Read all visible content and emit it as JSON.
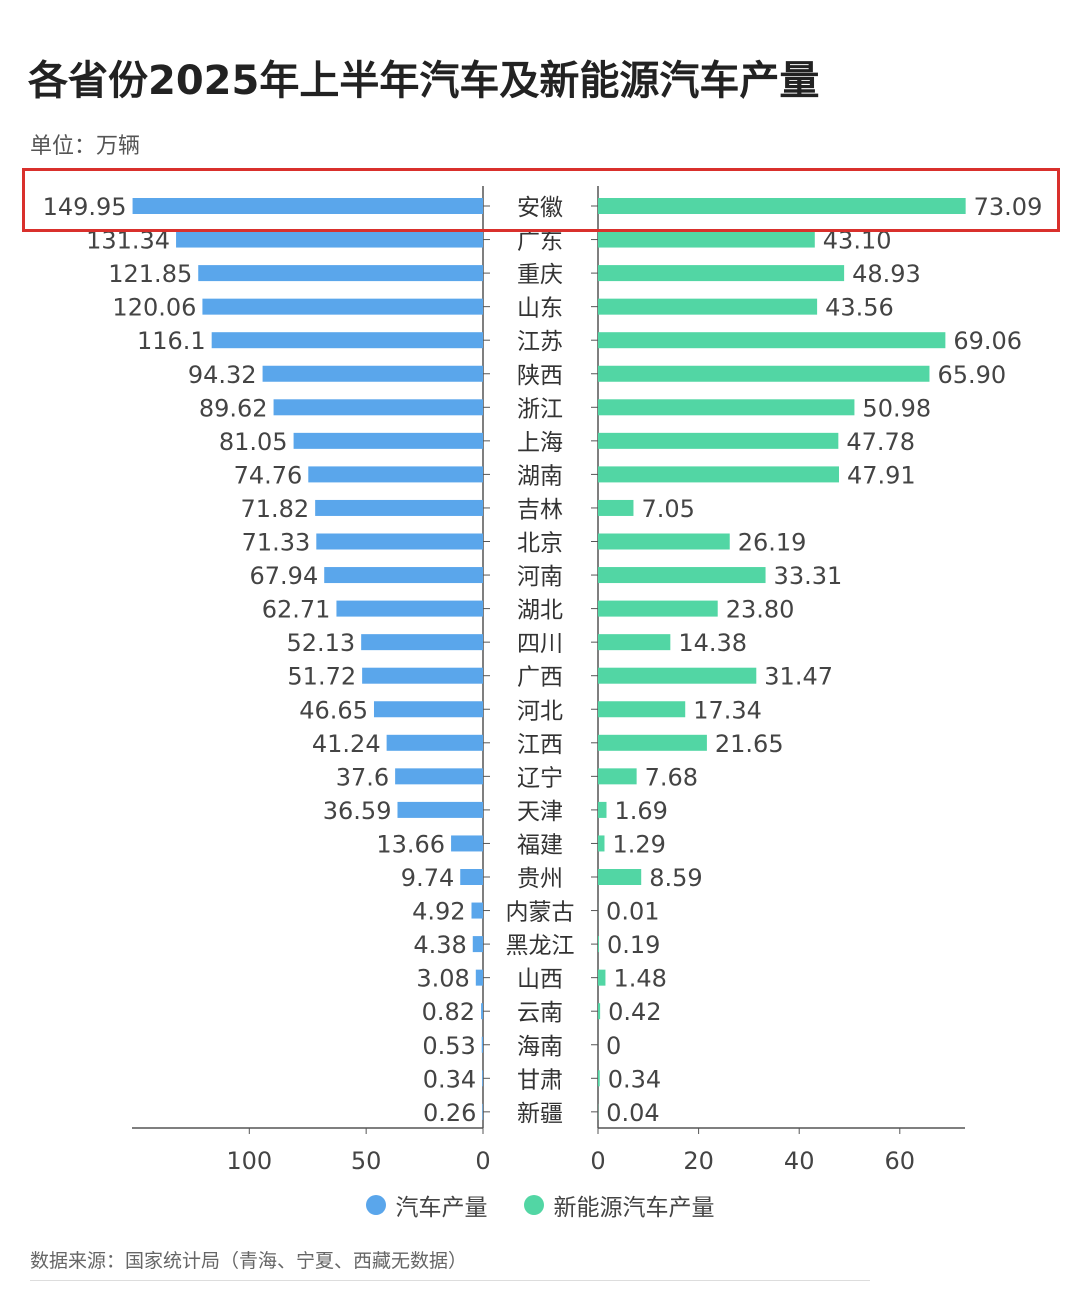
{
  "title": "各省份2025年上半年汽车及新能源汽车产量",
  "unit": "单位：万辆",
  "source": "数据来源：国家统计局（青海、宁夏、西藏无数据）",
  "colors": {
    "cars": "#5aa6eb",
    "nev": "#52d6a4",
    "highlight": "#d9302c"
  },
  "chart_data": {
    "type": "bar",
    "orientation": "horizontal-butterfly",
    "categories": [
      "安徽",
      "广东",
      "重庆",
      "山东",
      "江苏",
      "陕西",
      "浙江",
      "上海",
      "湖南",
      "吉林",
      "北京",
      "河南",
      "湖北",
      "四川",
      "广西",
      "河北",
      "江西",
      "辽宁",
      "天津",
      "福建",
      "贵州",
      "内蒙古",
      "黑龙江",
      "山西",
      "云南",
      "海南",
      "甘肃",
      "新疆"
    ],
    "series": [
      {
        "name": "汽车产量",
        "values": [
          149.95,
          131.34,
          121.85,
          120.06,
          116.1,
          94.32,
          89.62,
          81.05,
          74.76,
          71.82,
          71.33,
          67.94,
          62.71,
          52.13,
          51.72,
          46.65,
          41.24,
          37.6,
          36.59,
          13.66,
          9.74,
          4.92,
          4.38,
          3.08,
          0.82,
          0.53,
          0.34,
          0.26
        ],
        "labels": [
          "149.95",
          "131.34",
          "121.85",
          "120.06",
          "116.1",
          "94.32",
          "89.62",
          "81.05",
          "74.76",
          "71.82",
          "71.33",
          "67.94",
          "62.71",
          "52.13",
          "51.72",
          "46.65",
          "41.24",
          "37.6",
          "36.59",
          "13.66",
          "9.74",
          "4.92",
          "4.38",
          "3.08",
          "0.82",
          "0.53",
          "0.34",
          "0.26"
        ]
      },
      {
        "name": "新能源汽车产量",
        "values": [
          73.09,
          43.1,
          48.93,
          43.56,
          69.06,
          65.9,
          50.98,
          47.78,
          47.91,
          7.05,
          26.19,
          33.31,
          23.8,
          14.38,
          31.47,
          17.34,
          21.65,
          7.68,
          1.69,
          1.29,
          8.59,
          0.01,
          0.19,
          1.48,
          0.42,
          0,
          0.34,
          0.04
        ],
        "labels": [
          "73.09",
          "43.10",
          "48.93",
          "43.56",
          "69.06",
          "65.90",
          "50.98",
          "47.78",
          "47.91",
          "7.05",
          "26.19",
          "33.31",
          "23.80",
          "14.38",
          "31.47",
          "17.34",
          "21.65",
          "7.68",
          "1.69",
          "1.29",
          "8.59",
          "0.01",
          "0.19",
          "1.48",
          "0.42",
          "0",
          "0.34",
          "0.04"
        ]
      }
    ],
    "left_axis": {
      "ticks": [
        100,
        50,
        0
      ],
      "range": [
        150,
        0
      ]
    },
    "right_axis": {
      "ticks": [
        0,
        20,
        40,
        60
      ],
      "range": [
        0,
        73
      ]
    },
    "highlighted_category": "安徽",
    "legend_position": "bottom"
  }
}
